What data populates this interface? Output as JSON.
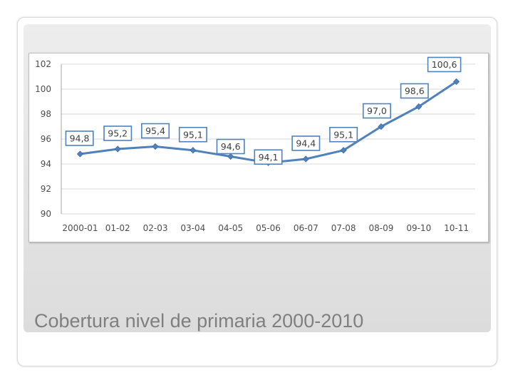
{
  "slide": {
    "title": "Cobertura nivel de primaria 2000-2010"
  },
  "colors": {
    "line": "#4f81bd",
    "label_border": "#4f81bd",
    "grid": "#d9d9d9",
    "title": "#7f7f7f"
  },
  "chart_data": {
    "type": "line",
    "title": "",
    "xlabel": "",
    "ylabel": "",
    "categories": [
      "2000-01",
      "01-02",
      "02-03",
      "03-04",
      "04-05",
      "05-06",
      "06-07",
      "07-08",
      "08-09",
      "09-10",
      "10-11"
    ],
    "series": [
      {
        "values": [
          94.8,
          95.2,
          95.4,
          95.1,
          94.6,
          94.1,
          94.4,
          95.1,
          97.0,
          98.6,
          100.6
        ],
        "data_labels": [
          "94,8",
          "95,2",
          "95,4",
          "95,1",
          "94,6",
          "94,1",
          "94,4",
          "95,1",
          "97,0",
          "98,6",
          "100,6"
        ],
        "marker": "diamond"
      }
    ],
    "ylim": [
      90,
      102
    ],
    "yticks": [
      90,
      92,
      94,
      96,
      98,
      100,
      102
    ],
    "grid": true,
    "legend": "none"
  }
}
